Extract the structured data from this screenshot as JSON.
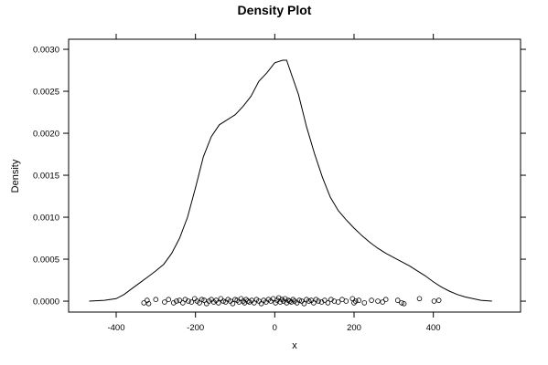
{
  "chart_data": {
    "type": "line",
    "title": "Density Plot",
    "xlabel": "x",
    "ylabel": "Density",
    "xlim": [
      -520,
      620
    ],
    "ylim": [
      -0.00013,
      0.00312
    ],
    "x_ticks": [
      -400,
      -200,
      0,
      200,
      400
    ],
    "x_tick_labels": [
      "-400",
      "-200",
      "0",
      "200",
      "400"
    ],
    "y_ticks": [
      0.0,
      0.0005,
      0.001,
      0.0015,
      0.002,
      0.0025,
      0.003
    ],
    "y_tick_labels": [
      "0.0000",
      "0.0005",
      "0.0010",
      "0.0015",
      "0.0020",
      "0.0025",
      "0.0030"
    ],
    "grid": false,
    "series": [
      {
        "kind": "density",
        "x": [
          -468,
          -430,
          -400,
          -380,
          -360,
          -340,
          -320,
          -300,
          -280,
          -260,
          -240,
          -220,
          -200,
          -180,
          -160,
          -140,
          -120,
          -100,
          -80,
          -60,
          -40,
          -20,
          0,
          20,
          30,
          40,
          60,
          80,
          100,
          120,
          140,
          160,
          180,
          200,
          220,
          240,
          260,
          280,
          300,
          320,
          340,
          360,
          380,
          400,
          420,
          440,
          460,
          480,
          500,
          520,
          548
        ],
        "y": [
          0.0,
          1e-05,
          3e-05,
          8e-05,
          0.00015,
          0.00022,
          0.00029,
          0.00036,
          0.00044,
          0.00057,
          0.00075,
          0.001,
          0.00135,
          0.00172,
          0.00196,
          0.0021,
          0.00216,
          0.00222,
          0.00232,
          0.00244,
          0.00262,
          0.00272,
          0.00284,
          0.00287,
          0.00287,
          0.00273,
          0.00246,
          0.00208,
          0.00176,
          0.00148,
          0.00124,
          0.00108,
          0.00097,
          0.00087,
          0.00078,
          0.0007,
          0.00063,
          0.00057,
          0.00052,
          0.00047,
          0.00042,
          0.00036,
          0.0003,
          0.00023,
          0.00017,
          0.00012,
          8e-05,
          5e-05,
          3e-05,
          1e-05,
          0.0
        ]
      },
      {
        "kind": "jittered_points",
        "x": [
          -330,
          -322,
          -318,
          -300,
          -278,
          -268,
          -255,
          -248,
          -240,
          -232,
          -226,
          -218,
          -210,
          -202,
          -196,
          -190,
          -184,
          -178,
          -172,
          -166,
          -160,
          -154,
          -148,
          -142,
          -136,
          -130,
          -124,
          -118,
          -112,
          -106,
          -100,
          -95,
          -90,
          -85,
          -80,
          -76,
          -72,
          -68,
          -64,
          -58,
          -52,
          -46,
          -40,
          -34,
          -28,
          -22,
          -16,
          -10,
          -4,
          2,
          6,
          10,
          14,
          18,
          22,
          26,
          30,
          34,
          38,
          42,
          46,
          50,
          56,
          62,
          68,
          74,
          80,
          86,
          92,
          98,
          104,
          110,
          118,
          126,
          134,
          142,
          150,
          160,
          170,
          180,
          196,
          200,
          204,
          212,
          226,
          244,
          260,
          272,
          280,
          310,
          320,
          326,
          365,
          402,
          414
        ],
        "y": [
          -2e-05,
          1e-05,
          -3e-05,
          2e-05,
          -1e-05,
          2e-05,
          -2e-05,
          0.0,
          1e-05,
          -2e-05,
          2e-05,
          0.0,
          -1e-05,
          3e-05,
          0.0,
          -2e-05,
          2e-05,
          1e-05,
          -3e-05,
          0.0,
          2e-05,
          -1e-05,
          1e-05,
          -2e-05,
          3e-05,
          0.0,
          -1e-05,
          2e-05,
          0.0,
          -3e-05,
          2e-05,
          1e-05,
          -1e-05,
          3e-05,
          0.0,
          -2e-05,
          2e-05,
          0.0,
          -1e-05,
          1e-05,
          -2e-05,
          2e-05,
          0.0,
          -3e-05,
          1e-05,
          -1e-05,
          2e-05,
          0.0,
          3e-05,
          -2e-05,
          1e-05,
          4e-05,
          -1e-05,
          2e-05,
          0.0,
          3e-05,
          -2e-05,
          1e-05,
          0.0,
          -1e-05,
          2e-05,
          0.0,
          -2e-05,
          1e-05,
          0.0,
          -3e-05,
          2e-05,
          0.0,
          1e-05,
          -2e-05,
          2e-05,
          0.0,
          -1e-05,
          1e-05,
          -2e-05,
          2e-05,
          0.0,
          -1e-05,
          2e-05,
          0.0,
          3e-05,
          -2e-05,
          0.0,
          1e-05,
          -2e-05,
          1e-05,
          0.0,
          -1e-05,
          2e-05,
          1e-05,
          -2e-05,
          -3e-05,
          3e-05,
          0.0,
          1e-05
        ]
      }
    ]
  }
}
